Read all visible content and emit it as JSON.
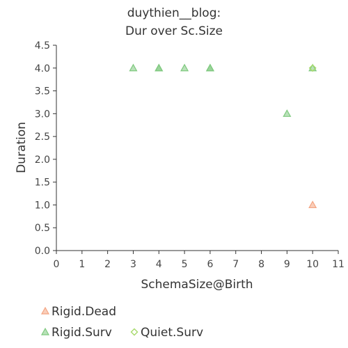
{
  "chart_data": {
    "type": "scatter",
    "title_lines": [
      "duythien__blog:",
      "Dur over Sc.Size"
    ],
    "xlabel": "SchemaSize@Birth",
    "ylabel": "Duration",
    "xlim": [
      0,
      11
    ],
    "ylim": [
      0,
      4.5
    ],
    "x_ticks": [
      "0",
      "1",
      "2",
      "3",
      "4",
      "5",
      "6",
      "7",
      "8",
      "9",
      "10",
      "11"
    ],
    "y_ticks": [
      "0.0",
      "0.5",
      "1.0",
      "1.5",
      "2.0",
      "2.5",
      "3.0",
      "3.5",
      "4.0",
      "4.5"
    ],
    "grid": false,
    "legend_position": "bottom",
    "series": [
      {
        "name": "Rigid.Dead",
        "marker": "triangle",
        "color": "#f4a582",
        "points": [
          [
            10,
            1.0
          ]
        ]
      },
      {
        "name": "Rigid.Surv",
        "marker": "triangle",
        "color": "#7fc97f",
        "points": [
          [
            3,
            4.0
          ],
          [
            4,
            4.0
          ],
          [
            4,
            4.0
          ],
          [
            5,
            4.0
          ],
          [
            6,
            4.0
          ],
          [
            6,
            4.0
          ],
          [
            9,
            3.0
          ],
          [
            10,
            4.0
          ]
        ]
      },
      {
        "name": "Quiet.Surv",
        "marker": "diamond",
        "color": "#a6d96a",
        "points": [
          [
            10,
            4.0
          ]
        ]
      }
    ]
  }
}
